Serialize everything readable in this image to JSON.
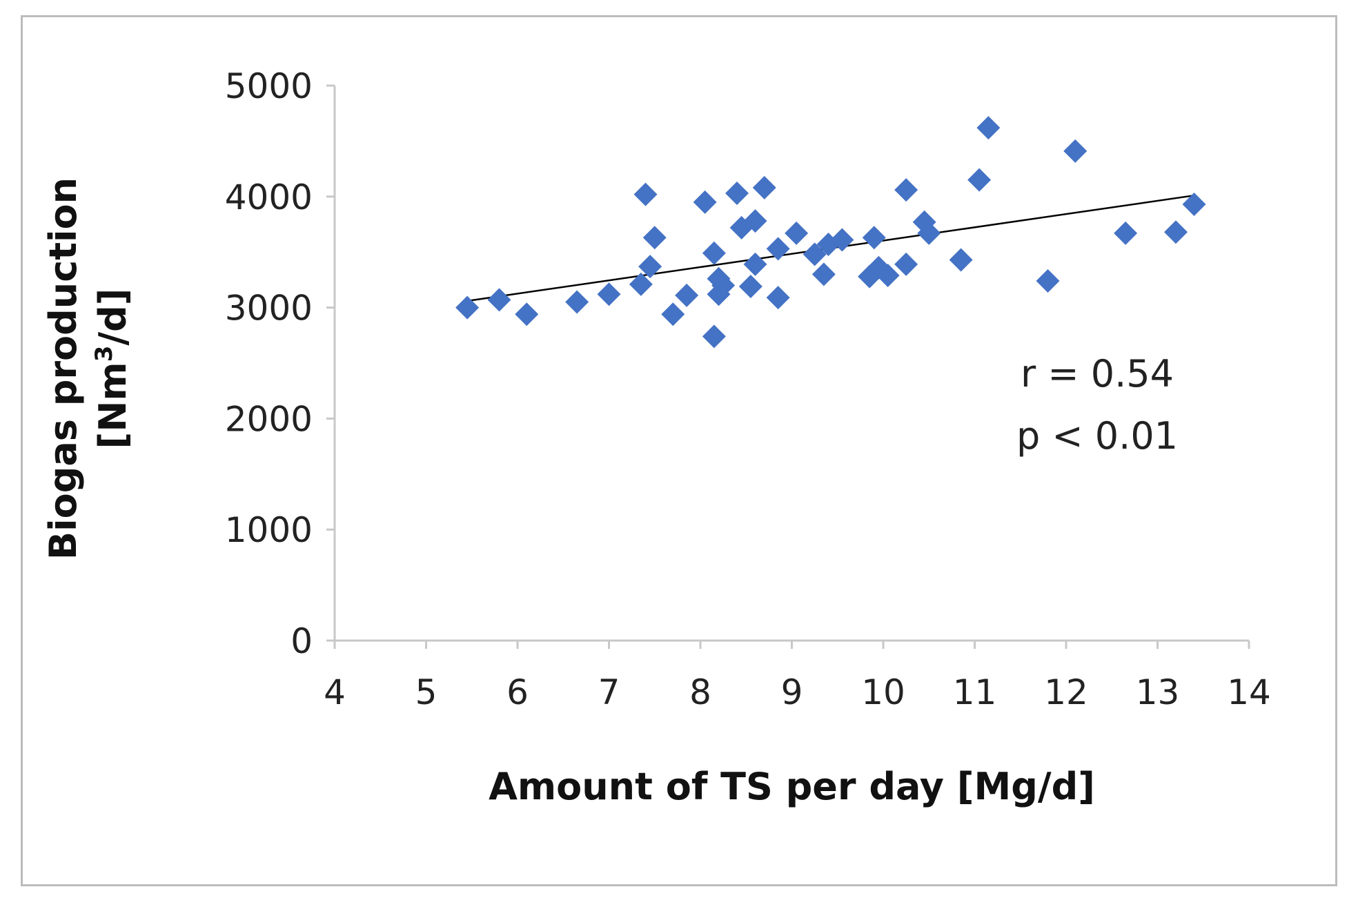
{
  "chart_data": {
    "type": "scatter",
    "title": "",
    "xlabel": "Amount of TS per day [Mg/d]",
    "ylabel_line1": "Biogas production",
    "ylabel_line2_pre": "[Nm",
    "ylabel_line2_sup": "3",
    "ylabel_line2_post": "/d]",
    "xlim": [
      4,
      14
    ],
    "ylim": [
      0,
      5000
    ],
    "xticks": [
      4,
      5,
      6,
      7,
      8,
      9,
      10,
      11,
      12,
      13,
      14
    ],
    "yticks": [
      0,
      1000,
      2000,
      3000,
      4000,
      5000
    ],
    "marker_color": "#4472c4",
    "trendline_color": "#000000",
    "trendline": {
      "x": [
        5.45,
        13.4
      ],
      "y": [
        3060,
        4010
      ]
    },
    "annotations": [
      "r = 0.54",
      "p < 0.01"
    ],
    "points": [
      {
        "x": 5.45,
        "y": 3000
      },
      {
        "x": 5.8,
        "y": 3070
      },
      {
        "x": 6.1,
        "y": 2940
      },
      {
        "x": 6.65,
        "y": 3050
      },
      {
        "x": 7.0,
        "y": 3120
      },
      {
        "x": 7.35,
        "y": 3210
      },
      {
        "x": 7.4,
        "y": 4020
      },
      {
        "x": 7.45,
        "y": 3370
      },
      {
        "x": 7.5,
        "y": 3630
      },
      {
        "x": 7.7,
        "y": 2940
      },
      {
        "x": 7.85,
        "y": 3110
      },
      {
        "x": 8.05,
        "y": 3950
      },
      {
        "x": 8.15,
        "y": 3490
      },
      {
        "x": 8.15,
        "y": 2740
      },
      {
        "x": 8.2,
        "y": 3120
      },
      {
        "x": 8.2,
        "y": 3260
      },
      {
        "x": 8.25,
        "y": 3200
      },
      {
        "x": 8.4,
        "y": 4030
      },
      {
        "x": 8.45,
        "y": 3720
      },
      {
        "x": 8.55,
        "y": 3190
      },
      {
        "x": 8.6,
        "y": 3390
      },
      {
        "x": 8.6,
        "y": 3780
      },
      {
        "x": 8.7,
        "y": 4080
      },
      {
        "x": 8.85,
        "y": 3530
      },
      {
        "x": 8.85,
        "y": 3090
      },
      {
        "x": 9.05,
        "y": 3670
      },
      {
        "x": 9.25,
        "y": 3480
      },
      {
        "x": 9.35,
        "y": 3300
      },
      {
        "x": 9.4,
        "y": 3570
      },
      {
        "x": 9.55,
        "y": 3610
      },
      {
        "x": 9.85,
        "y": 3280
      },
      {
        "x": 9.9,
        "y": 3630
      },
      {
        "x": 9.95,
        "y": 3360
      },
      {
        "x": 10.05,
        "y": 3290
      },
      {
        "x": 10.25,
        "y": 3390
      },
      {
        "x": 10.25,
        "y": 4060
      },
      {
        "x": 10.45,
        "y": 3770
      },
      {
        "x": 10.5,
        "y": 3670
      },
      {
        "x": 10.85,
        "y": 3430
      },
      {
        "x": 11.05,
        "y": 4150
      },
      {
        "x": 11.15,
        "y": 4620
      },
      {
        "x": 11.8,
        "y": 3240
      },
      {
        "x": 12.1,
        "y": 4410
      },
      {
        "x": 12.65,
        "y": 3670
      },
      {
        "x": 13.2,
        "y": 3680
      },
      {
        "x": 13.4,
        "y": 3930
      }
    ]
  }
}
